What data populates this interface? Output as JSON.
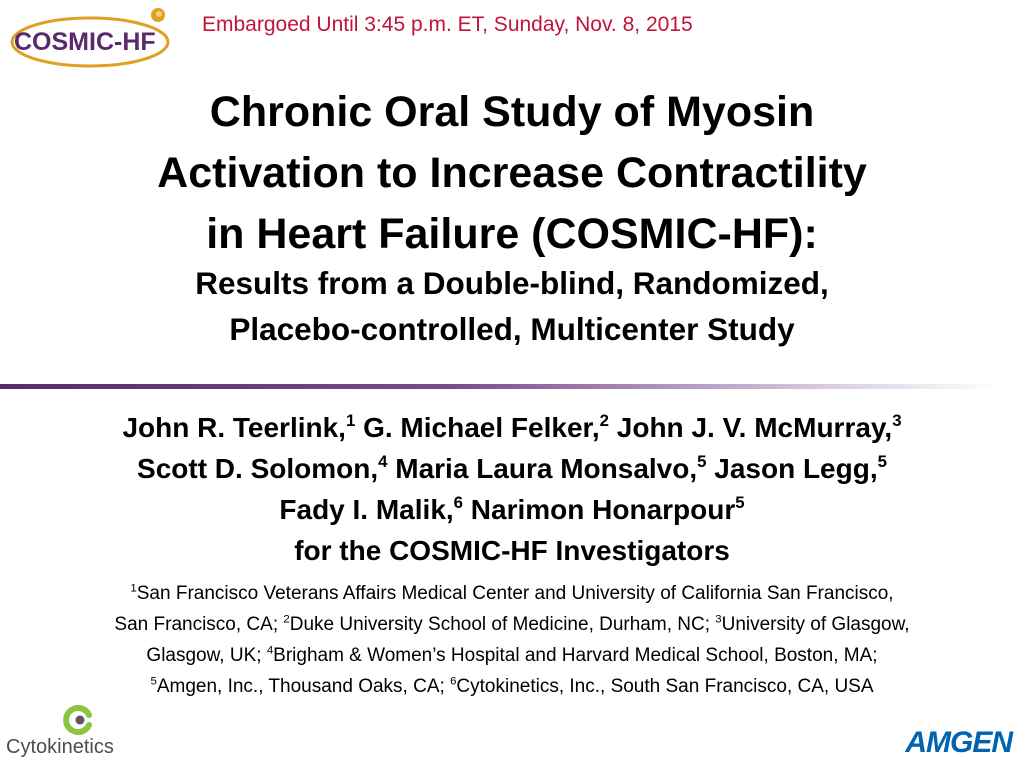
{
  "header": {
    "logo_text": "COSMIC-HF",
    "embargo": "Embargoed Until 3:45 p.m. ET, Sunday, Nov. 8, 2015"
  },
  "title_lines": [
    "Chronic Oral Study of Myosin",
    "Activation to Increase Contractility",
    "in Heart Failure (COSMIC-HF):"
  ],
  "subtitle_lines": [
    "Results from a Double-blind, Randomized,",
    "Placebo-controlled, Multicenter Study"
  ],
  "authors": {
    "line1": [
      {
        "name": "John R. Teerlink,",
        "sup": "1"
      },
      {
        "name": " G. Michael Felker,",
        "sup": "2"
      },
      {
        "name": " John J. V. McMurray,",
        "sup": "3"
      }
    ],
    "line2": [
      {
        "name": "Scott D. Solomon,",
        "sup": "4"
      },
      {
        "name": " Maria Laura Monsalvo,",
        "sup": "5"
      },
      {
        "name": " Jason Legg,",
        "sup": "5"
      }
    ],
    "line3": [
      {
        "name": "Fady I. Malik,",
        "sup": "6"
      },
      {
        "name": " Narimon Honarpour",
        "sup": "5"
      }
    ],
    "group": "for the COSMIC-HF Investigators"
  },
  "affiliations": {
    "line1": {
      "sup1": "1",
      "text1": "San Francisco Veterans Affairs Medical Center and University of California San Francisco,"
    },
    "line2": {
      "text1": "San Francisco, CA; ",
      "sup2": "2",
      "text2": "Duke University School of Medicine, Durham, NC; ",
      "sup3": "3",
      "text3": "University of Glasgow,"
    },
    "line3": {
      "text1": "Glasgow, UK; ",
      "sup4": "4",
      "text4": "Brigham & Women’s Hospital and Harvard Medical School, Boston, MA;"
    },
    "line4": {
      "sup5": "5",
      "text5": "Amgen, Inc., Thousand Oaks, CA; ",
      "sup6": "6",
      "text6": "Cytokinetics, Inc., South San Francisco, CA, USA"
    }
  },
  "footer": {
    "cytokinetics_logo_text": "Cytokinetics",
    "amgen_logo_text": "AMGEN"
  },
  "colors": {
    "embargo": "#c0143c",
    "cosmic_purple": "#5b2a6e",
    "cosmic_gold": "#e0a020",
    "amgen_blue": "#0063af",
    "cyto_green": "#8cc63f"
  }
}
